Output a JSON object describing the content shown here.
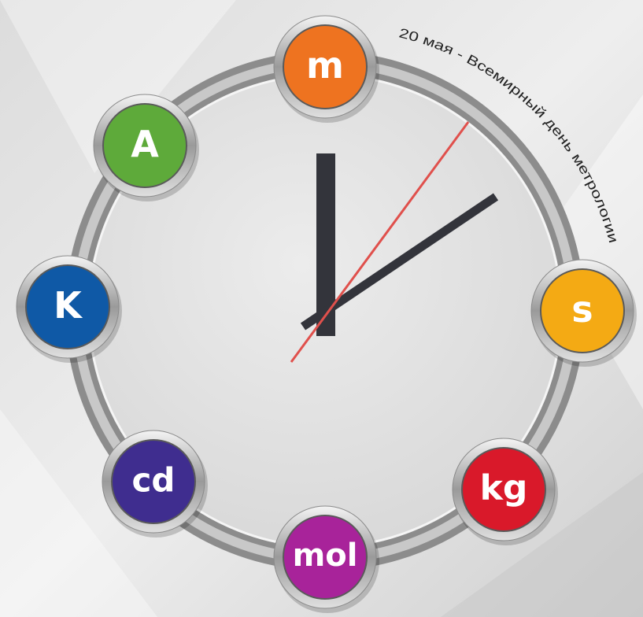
{
  "title": "20 мая - Всемирный день метрологии",
  "units": [
    {
      "label": "m"
    },
    {
      "label": "s"
    },
    {
      "label": "kg"
    },
    {
      "label": "mol"
    },
    {
      "label": "cd"
    },
    {
      "label": "K"
    },
    {
      "label": "A"
    }
  ]
}
